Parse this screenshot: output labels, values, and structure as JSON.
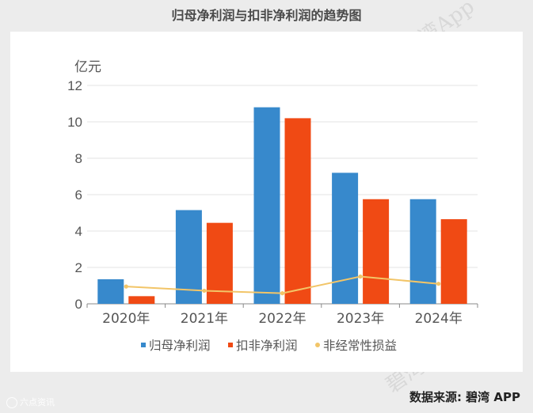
{
  "title": "归母净利润与扣非净利润的趋势图",
  "footer": {
    "source": "数据来源: 碧湾 APP",
    "brand": "六点资讯"
  },
  "watermark": "碧湾App",
  "chart_data": {
    "type": "bar",
    "ylabel": "亿元",
    "categories": [
      "2020年",
      "2021年",
      "2022年",
      "2023年",
      "2024年"
    ],
    "ylim": [
      0,
      12
    ],
    "yticks": [
      0,
      2,
      4,
      6,
      8,
      10,
      12
    ],
    "grid": true,
    "legend": "bottom",
    "series": [
      {
        "name": "归母净利润",
        "kind": "bar",
        "color": "#3789cc",
        "values": [
          1.35,
          5.15,
          10.8,
          7.2,
          5.75
        ]
      },
      {
        "name": "扣非净利润",
        "kind": "bar",
        "color": "#f04a14",
        "values": [
          0.42,
          4.45,
          10.2,
          5.75,
          4.65
        ]
      },
      {
        "name": "非经常性损益",
        "kind": "line",
        "color": "#f2c568",
        "values": [
          0.95,
          0.72,
          0.58,
          1.5,
          1.1
        ]
      }
    ]
  }
}
